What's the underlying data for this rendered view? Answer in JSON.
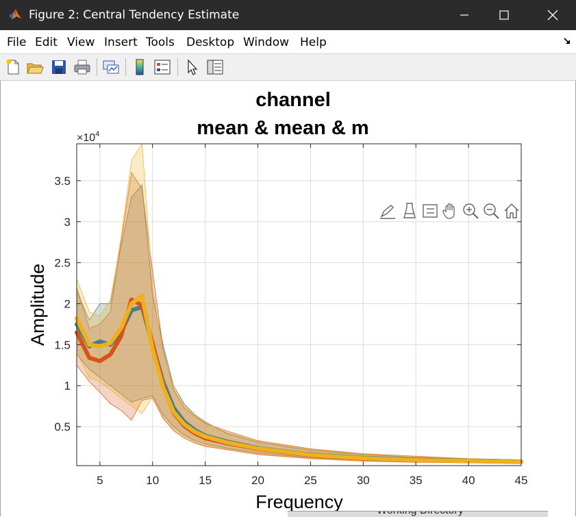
{
  "window": {
    "title": "Figure 2: Central Tendency Estimate",
    "controls": [
      "minimize",
      "maximize",
      "close"
    ]
  },
  "menu": {
    "items": [
      "File",
      "Edit",
      "View",
      "Insert",
      "Tools",
      "Desktop",
      "Window",
      "Help"
    ]
  },
  "toolbar": {
    "icons": [
      "new-figure-icon",
      "open-file-icon",
      "save-icon",
      "print-icon",
      "link-plot-icon",
      "insert-colorbar-icon",
      "insert-legend-icon",
      "pointer-icon",
      "property-inspector-icon"
    ]
  },
  "axes_toolbar": {
    "icons": [
      "brush-icon",
      "data-tips-icon",
      "legend-toggle-icon",
      "pan-icon",
      "zoom-in-icon",
      "zoom-out-icon",
      "restore-view-icon"
    ]
  },
  "colors": {
    "titlebar": "#2b2b2b",
    "series_blue_green": "#4a7d85",
    "series_orange": "#d95319",
    "series_yellow": "#edb120"
  },
  "chart_data": {
    "type": "line",
    "title": [
      "channel",
      "mean & mean & m"
    ],
    "xlabel": "Frequency",
    "ylabel": "Amplitude",
    "y_exponent_label": "×10",
    "y_exponent_power": "4",
    "xlim": [
      2.8,
      45
    ],
    "ylim": [
      250,
      39500
    ],
    "xticks": [
      5,
      10,
      15,
      20,
      25,
      30,
      35,
      40,
      45
    ],
    "xtick_labels": [
      "5",
      "10",
      "15",
      "20",
      "25",
      "30",
      "35",
      "40",
      "45"
    ],
    "yticks": [
      5000,
      10000,
      15000,
      20000,
      25000,
      30000,
      35000
    ],
    "ytick_labels": [
      "0.5",
      "1",
      "1.5",
      "2",
      "2.5",
      "3",
      "3.5"
    ],
    "grid": true,
    "x": [
      2.8,
      4,
      5,
      6,
      7,
      8,
      9,
      10,
      11,
      12,
      13,
      14,
      15,
      17,
      20,
      25,
      30,
      35,
      40,
      45
    ],
    "series": [
      {
        "color": "#4a7d85",
        "mean": [
          17500,
          14800,
          15400,
          15000,
          16500,
          19200,
          19600,
          15000,
          10500,
          7300,
          5600,
          4600,
          3900,
          3200,
          2400,
          1600,
          1200,
          950,
          850,
          750
        ],
        "upper": [
          21500,
          18000,
          20000,
          20000,
          27000,
          33000,
          34500,
          21000,
          15000,
          10000,
          7800,
          6500,
          5600,
          4200,
          3100,
          2100,
          1600,
          1250,
          1050,
          950
        ],
        "lower": [
          13800,
          12000,
          11000,
          10000,
          9000,
          8000,
          8400,
          8800,
          6500,
          5000,
          4000,
          3300,
          2900,
          2400,
          1800,
          1200,
          900,
          700,
          650,
          580
        ]
      },
      {
        "color": "#d95319",
        "mean": [
          16500,
          13400,
          13000,
          13800,
          16000,
          20500,
          19800,
          15200,
          10000,
          6700,
          5100,
          4200,
          3600,
          3000,
          2300,
          1500,
          1100,
          900,
          800,
          700
        ],
        "upper": [
          22000,
          17000,
          17500,
          19000,
          27500,
          36000,
          34000,
          24000,
          14500,
          9500,
          7300,
          6300,
          5400,
          4500,
          3300,
          2300,
          1700,
          1400,
          1100,
          950
        ],
        "lower": [
          12500,
          10500,
          9200,
          7800,
          7000,
          5800,
          8200,
          8500,
          6000,
          4500,
          3600,
          3000,
          2600,
          2200,
          1600,
          1100,
          800,
          650,
          600,
          530
        ]
      },
      {
        "color": "#edb120",
        "mean": [
          18200,
          15000,
          14800,
          15200,
          17000,
          20000,
          21000,
          14500,
          9800,
          6800,
          5300,
          4400,
          3800,
          3100,
          2350,
          1550,
          1150,
          920,
          820,
          720
        ],
        "upper": [
          23000,
          19000,
          18500,
          20500,
          28000,
          37500,
          39500,
          22000,
          14000,
          10000,
          7600,
          6400,
          5500,
          4300,
          3200,
          2200,
          1650,
          1300,
          1100,
          950
        ],
        "lower": [
          14000,
          11000,
          10500,
          9500,
          8500,
          7500,
          6600,
          8600,
          6200,
          4700,
          3800,
          3100,
          2700,
          2300,
          1700,
          1150,
          850,
          680,
          620,
          560
        ]
      }
    ]
  },
  "status": {
    "bottom_text": "Working Directory"
  }
}
